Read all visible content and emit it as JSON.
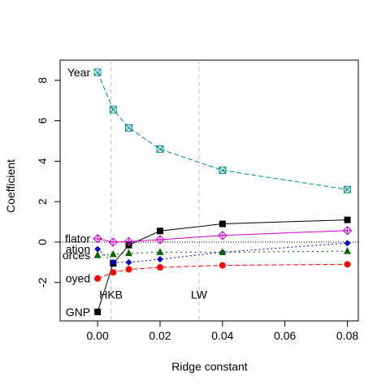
{
  "chart_data": {
    "type": "line",
    "xlabel": "Ridge constant",
    "ylabel": "Coefficient",
    "xlim": [
      -0.012,
      0.0835
    ],
    "ylim": [
      -3.9,
      9.0
    ],
    "x_ticks": [
      0.0,
      0.02,
      0.04,
      0.06,
      0.08
    ],
    "x_tick_labels": [
      "0.00",
      "0.02",
      "0.04",
      "0.06",
      "0.08"
    ],
    "y_ticks": [
      -2,
      0,
      2,
      4,
      6,
      8
    ],
    "y_tick_labels": [
      "-2",
      "0",
      "2",
      "4",
      "6",
      "8"
    ],
    "grid": false,
    "reference_line": {
      "y": 0,
      "style": "dotted"
    },
    "vlines": [
      {
        "x": 0.0043,
        "label": "HKB"
      },
      {
        "x": 0.0325,
        "label": "LW"
      }
    ],
    "x": [
      0.0,
      0.005,
      0.01,
      0.02,
      0.04,
      0.08
    ],
    "series": [
      {
        "name": "Year",
        "label": "Year",
        "color": "#008B8B",
        "marker": "boxed-x",
        "dash": "6,3",
        "values": [
          8.4,
          6.55,
          5.65,
          4.6,
          3.55,
          2.6
        ]
      },
      {
        "name": "GNP",
        "label": "GNP",
        "color": "#000000",
        "marker": "square",
        "dash": "",
        "values": [
          -3.45,
          -1.05,
          -0.15,
          0.55,
          0.9,
          1.1
        ]
      },
      {
        "name": "GNP.deflator",
        "label": "flator",
        "color": "#CC00CC",
        "marker": "diamond-plus",
        "dash": "",
        "values": [
          0.17,
          0.0,
          0.03,
          0.12,
          0.33,
          0.57
        ]
      },
      {
        "name": "Population",
        "label": "ation",
        "color": "#0000CC",
        "marker": "diamond",
        "dash": "2,3",
        "values": [
          -0.35,
          -1.0,
          -1.0,
          -0.85,
          -0.5,
          -0.05
        ]
      },
      {
        "name": "Armed.Forces",
        "label": "orces",
        "color": "#006400",
        "marker": "triangle",
        "dash": "2,4",
        "values": [
          -0.65,
          -0.6,
          -0.55,
          -0.5,
          -0.5,
          -0.45
        ]
      },
      {
        "name": "Unemployed",
        "label": "oyed",
        "color": "#FF0000",
        "marker": "circle",
        "dash": "6,3",
        "values": [
          -1.8,
          -1.5,
          -1.35,
          -1.25,
          -1.15,
          -1.1
        ]
      }
    ]
  }
}
